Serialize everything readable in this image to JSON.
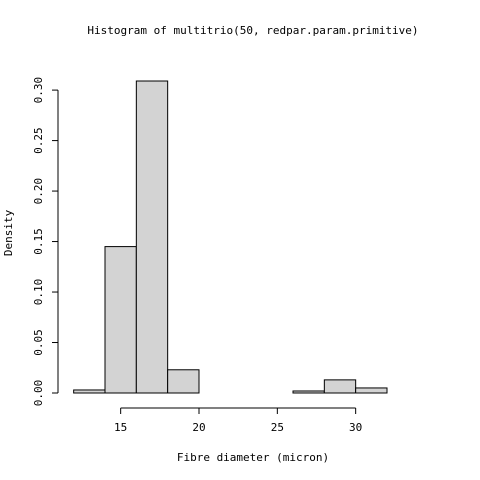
{
  "chart_data": {
    "type": "bar",
    "title": "Histogram of multitrio(50, redpar.param.primitive)",
    "xlabel": "Fibre diameter (micron)",
    "ylabel": "Density",
    "bins": [
      {
        "x0": 12,
        "x1": 14,
        "density": 0.003
      },
      {
        "x0": 14,
        "x1": 16,
        "density": 0.145
      },
      {
        "x0": 16,
        "x1": 18,
        "density": 0.309
      },
      {
        "x0": 18,
        "x1": 20,
        "density": 0.023
      },
      {
        "x0": 20,
        "x1": 22,
        "density": 0.0
      },
      {
        "x0": 22,
        "x1": 24,
        "density": 0.0
      },
      {
        "x0": 24,
        "x1": 26,
        "density": 0.0
      },
      {
        "x0": 26,
        "x1": 28,
        "density": 0.002
      },
      {
        "x0": 28,
        "x1": 30,
        "density": 0.013
      },
      {
        "x0": 30,
        "x1": 32,
        "density": 0.005
      }
    ],
    "x_ticks": [
      15,
      20,
      25,
      30
    ],
    "x_tick_labels": [
      "15",
      "20",
      "25",
      "30"
    ],
    "y_ticks": [
      0,
      0.05,
      0.1,
      0.15,
      0.2,
      0.25,
      0.3
    ],
    "y_tick_labels": [
      "0.00",
      "0.05",
      "0.10",
      "0.15",
      "0.20",
      "0.25",
      "0.30"
    ],
    "xlim": [
      11,
      35
    ],
    "ylim": [
      0,
      0.31
    ],
    "grid": false,
    "bar_fill": "#d3d3d3",
    "bar_stroke": "#000000"
  }
}
